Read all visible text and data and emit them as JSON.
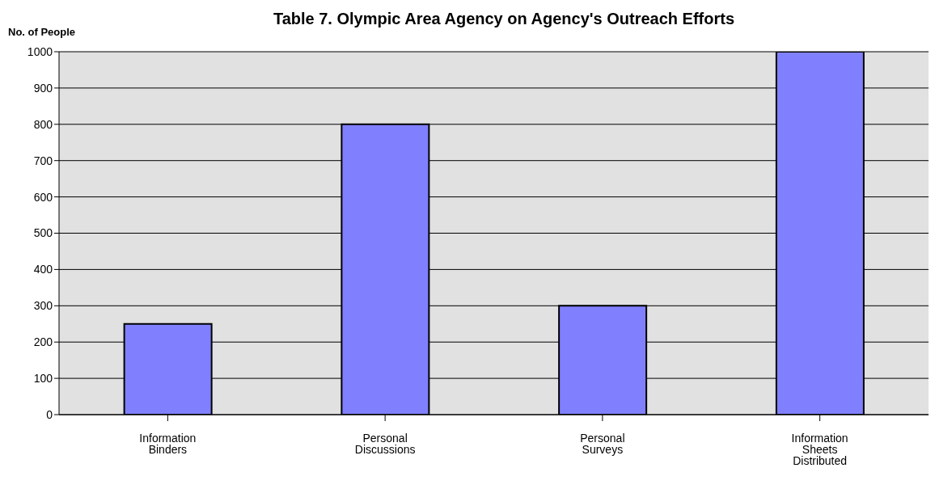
{
  "chart_data": {
    "type": "bar",
    "title": "Table 7. Olympic Area Agency on Agency's Outreach Efforts",
    "ylabel": "No. of People",
    "categories": [
      "Information Binders",
      "Personal Discussions",
      "Personal Surveys",
      "Information Sheets Distributed"
    ],
    "values": [
      250,
      800,
      300,
      1000
    ],
    "color": "#8080ff",
    "ylim": [
      0,
      1000
    ],
    "yticks": [
      0,
      100,
      200,
      300,
      400,
      500,
      600,
      700,
      800,
      900,
      1000
    ],
    "grid": "y",
    "legend": false
  }
}
